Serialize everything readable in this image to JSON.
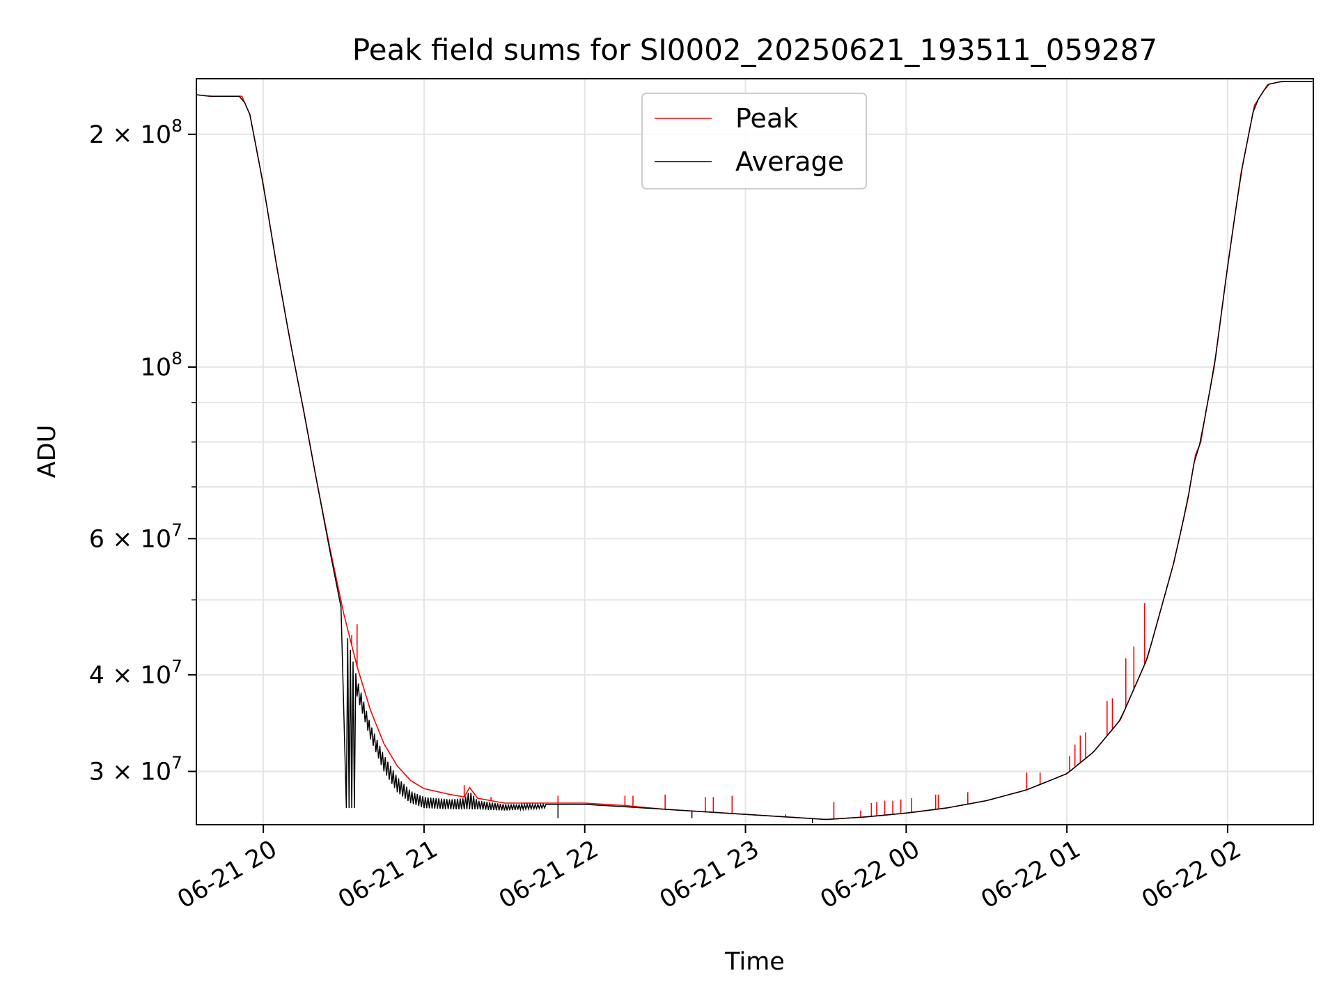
{
  "chart_data": {
    "type": "line",
    "title": "Peak field sums for SI0002_20250621_193511_059287",
    "xlabel": "Time",
    "ylabel": "ADU",
    "x_unit": "time",
    "x_range": [
      "06-21 19:35",
      "06-22 02:32"
    ],
    "ylim": [
      25600000,
      236000000
    ],
    "yscale": "log",
    "grid": true,
    "legend_position": "top-center",
    "x_ticks": [
      {
        "time": "06-21 20:00",
        "label": "06-21 20"
      },
      {
        "time": "06-21 21:00",
        "label": "06-21 21"
      },
      {
        "time": "06-21 22:00",
        "label": "06-21 22"
      },
      {
        "time": "06-21 23:00",
        "label": "06-21 23"
      },
      {
        "time": "06-22 00:00",
        "label": "06-22 00"
      },
      {
        "time": "06-22 01:00",
        "label": "06-22 01"
      },
      {
        "time": "06-22 02:00",
        "label": "06-22 02"
      }
    ],
    "y_ticks": [
      {
        "value": 30000000,
        "mantissa": "3",
        "exp": "7"
      },
      {
        "value": 40000000,
        "mantissa": "4",
        "exp": "7"
      },
      {
        "value": 60000000,
        "mantissa": "6",
        "exp": "7"
      },
      {
        "value": 100000000,
        "mantissa": "",
        "exp": "8"
      },
      {
        "value": 200000000,
        "mantissa": "2",
        "exp": "8"
      }
    ],
    "y_minor_ticks": [
      50000000,
      70000000,
      80000000,
      90000000
    ],
    "series": [
      {
        "name": "Peak",
        "color": "#ff0000",
        "points": [
          [
            "06-21 19:35",
            225000000
          ],
          [
            "06-21 19:40",
            224000000
          ],
          [
            "06-21 19:45",
            224000000
          ],
          [
            "06-21 19:52",
            224000000
          ],
          [
            "06-21 19:55",
            212000000
          ],
          [
            "06-21 20:00",
            172000000
          ],
          [
            "06-21 20:05",
            135000000
          ],
          [
            "06-21 20:10",
            108000000
          ],
          [
            "06-21 20:15",
            88000000
          ],
          [
            "06-21 20:20",
            71000000
          ],
          [
            "06-21 20:25",
            58000000
          ],
          [
            "06-21 20:30",
            48000000
          ],
          [
            "06-21 20:35",
            41000000
          ],
          [
            "06-21 20:40",
            36000000
          ],
          [
            "06-21 20:45",
            32600000
          ],
          [
            "06-21 20:50",
            30500000
          ],
          [
            "06-21 20:55",
            29200000
          ],
          [
            "06-21 21:00",
            28500000
          ],
          [
            "06-21 21:10",
            28000000
          ],
          [
            "06-21 21:15",
            27800000
          ],
          [
            "06-21 21:17",
            28600000
          ],
          [
            "06-21 21:20",
            27700000
          ],
          [
            "06-21 21:30",
            27300000
          ],
          [
            "06-21 21:45",
            27300000
          ],
          [
            "06-21 22:00",
            27300000
          ],
          [
            "06-21 22:15",
            27100000
          ],
          [
            "06-21 22:30",
            26800000
          ],
          [
            "06-21 22:45",
            26600000
          ],
          [
            "06-21 23:00",
            26400000
          ],
          [
            "06-21 23:15",
            26200000
          ],
          [
            "06-21 23:30",
            26000000
          ],
          [
            "06-21 23:45",
            26200000
          ],
          [
            "06-22 00:00",
            26500000
          ],
          [
            "06-22 00:15",
            26900000
          ],
          [
            "06-22 00:30",
            27500000
          ],
          [
            "06-22 00:45",
            28400000
          ],
          [
            "06-22 01:00",
            29800000
          ],
          [
            "06-22 01:10",
            31800000
          ],
          [
            "06-22 01:20",
            35000000
          ],
          [
            "06-22 01:30",
            42000000
          ],
          [
            "06-22 01:40",
            56000000
          ],
          [
            "06-22 01:45",
            67000000
          ],
          [
            "06-22 01:48",
            77000000
          ],
          [
            "06-22 01:50",
            80000000
          ],
          [
            "06-22 01:52",
            88000000
          ],
          [
            "06-22 01:55",
            100000000
          ],
          [
            "06-22 02:00",
            135000000
          ],
          [
            "06-22 02:05",
            178000000
          ],
          [
            "06-22 02:10",
            218000000
          ],
          [
            "06-22 02:15",
            232000000
          ],
          [
            "06-22 02:20",
            234000000
          ],
          [
            "06-22 02:32",
            234000000
          ]
        ],
        "spikes": [
          [
            "06-21 20:33",
            45000000
          ],
          [
            "06-21 20:35",
            46500000
          ],
          [
            "06-21 21:15",
            28800000
          ],
          [
            "06-21 21:25",
            27800000
          ],
          [
            "06-21 21:50",
            27900000
          ],
          [
            "06-21 22:15",
            27900000
          ],
          [
            "06-21 22:18",
            27900000
          ],
          [
            "06-21 22:30",
            28000000
          ],
          [
            "06-21 22:45",
            27800000
          ],
          [
            "06-21 22:48",
            27800000
          ],
          [
            "06-21 22:55",
            27900000
          ],
          [
            "06-21 23:15",
            26400000
          ],
          [
            "06-21 23:33",
            27400000
          ],
          [
            "06-21 23:43",
            26700000
          ],
          [
            "06-21 23:47",
            27300000
          ],
          [
            "06-21 23:49",
            27400000
          ],
          [
            "06-21 23:52",
            27500000
          ],
          [
            "06-21 23:55",
            27500000
          ],
          [
            "06-21 23:58",
            27600000
          ],
          [
            "06-22 00:02",
            27700000
          ],
          [
            "06-22 00:11",
            28000000
          ],
          [
            "06-22 00:12",
            28000000
          ],
          [
            "06-22 00:23",
            28200000
          ],
          [
            "06-22 00:45",
            29900000
          ],
          [
            "06-22 00:50",
            29900000
          ],
          [
            "06-22 01:01",
            31400000
          ],
          [
            "06-22 01:03",
            32500000
          ],
          [
            "06-22 01:05",
            33400000
          ],
          [
            "06-22 01:07",
            33700000
          ],
          [
            "06-22 01:15",
            37000000
          ],
          [
            "06-22 01:17",
            37300000
          ],
          [
            "06-22 01:22",
            42000000
          ],
          [
            "06-22 01:25",
            43500000
          ],
          [
            "06-22 01:29",
            49500000
          ]
        ]
      },
      {
        "name": "Average",
        "color": "#000000",
        "points": [
          [
            "06-21 19:35",
            225000000
          ],
          [
            "06-21 19:40",
            224000000
          ],
          [
            "06-21 19:45",
            224000000
          ],
          [
            "06-21 19:52",
            224000000
          ],
          [
            "06-21 19:55",
            212000000
          ],
          [
            "06-21 20:00",
            172000000
          ],
          [
            "06-21 20:05",
            135000000
          ],
          [
            "06-21 20:10",
            108000000
          ],
          [
            "06-21 20:15",
            88000000
          ],
          [
            "06-21 20:20",
            71000000
          ],
          [
            "06-21 20:25",
            57500000
          ],
          [
            "06-21 20:30",
            47000000
          ],
          [
            "06-21 20:35",
            39500000
          ],
          [
            "06-21 20:40",
            34500000
          ],
          [
            "06-21 20:45",
            31500000
          ],
          [
            "06-21 20:50",
            29500000
          ],
          [
            "06-21 20:55",
            28300000
          ],
          [
            "06-21 21:00",
            27800000
          ],
          [
            "06-21 21:10",
            27600000
          ],
          [
            "06-21 21:15",
            27700000
          ],
          [
            "06-21 21:17",
            28300000
          ],
          [
            "06-21 21:20",
            27500000
          ],
          [
            "06-21 21:30",
            27200000
          ],
          [
            "06-21 21:45",
            27200000
          ],
          [
            "06-21 22:00",
            27200000
          ],
          [
            "06-21 22:15",
            27000000
          ],
          [
            "06-21 22:30",
            26800000
          ],
          [
            "06-21 22:45",
            26600000
          ],
          [
            "06-21 23:00",
            26400000
          ],
          [
            "06-21 23:15",
            26200000
          ],
          [
            "06-21 23:30",
            26000000
          ],
          [
            "06-21 23:45",
            26200000
          ],
          [
            "06-22 00:00",
            26500000
          ],
          [
            "06-22 00:15",
            26900000
          ],
          [
            "06-22 00:30",
            27500000
          ],
          [
            "06-22 00:45",
            28400000
          ],
          [
            "06-22 01:00",
            29800000
          ],
          [
            "06-22 01:10",
            31800000
          ],
          [
            "06-22 01:20",
            35000000
          ],
          [
            "06-22 01:30",
            42000000
          ],
          [
            "06-22 01:40",
            56000000
          ],
          [
            "06-22 01:45",
            67000000
          ],
          [
            "06-22 01:48",
            77000000
          ],
          [
            "06-22 01:50",
            80000000
          ],
          [
            "06-22 01:52",
            88000000
          ],
          [
            "06-22 01:55",
            100000000
          ],
          [
            "06-22 02:00",
            135000000
          ],
          [
            "06-22 02:05",
            178000000
          ],
          [
            "06-22 02:10",
            218000000
          ],
          [
            "06-22 02:15",
            232000000
          ],
          [
            "06-22 02:20",
            234000000
          ],
          [
            "06-22 02:32",
            234000000
          ]
        ],
        "noise_band": {
          "description_start": "06-21 20:30",
          "description_end": "06-21 21:45",
          "typical_low": [
            [
              "06-21 20:35",
              37500000
            ],
            [
              "06-21 20:40",
              33000000
            ],
            [
              "06-21 20:45",
              30000000
            ],
            [
              "06-21 20:50",
              28200000
            ],
            [
              "06-21 20:55",
              27300000
            ],
            [
              "06-21 21:00",
              26900000
            ],
            [
              "06-21 21:10",
              26800000
            ],
            [
              "06-21 21:20",
              26800000
            ],
            [
              "06-21 21:30",
              26700000
            ],
            [
              "06-21 21:45",
              26900000
            ]
          ]
        },
        "dips": [
          [
            "06-21 21:50",
            26100000
          ],
          [
            "06-21 22:40",
            26100000
          ],
          [
            "06-21 23:25",
            25700000
          ]
        ]
      }
    ]
  }
}
